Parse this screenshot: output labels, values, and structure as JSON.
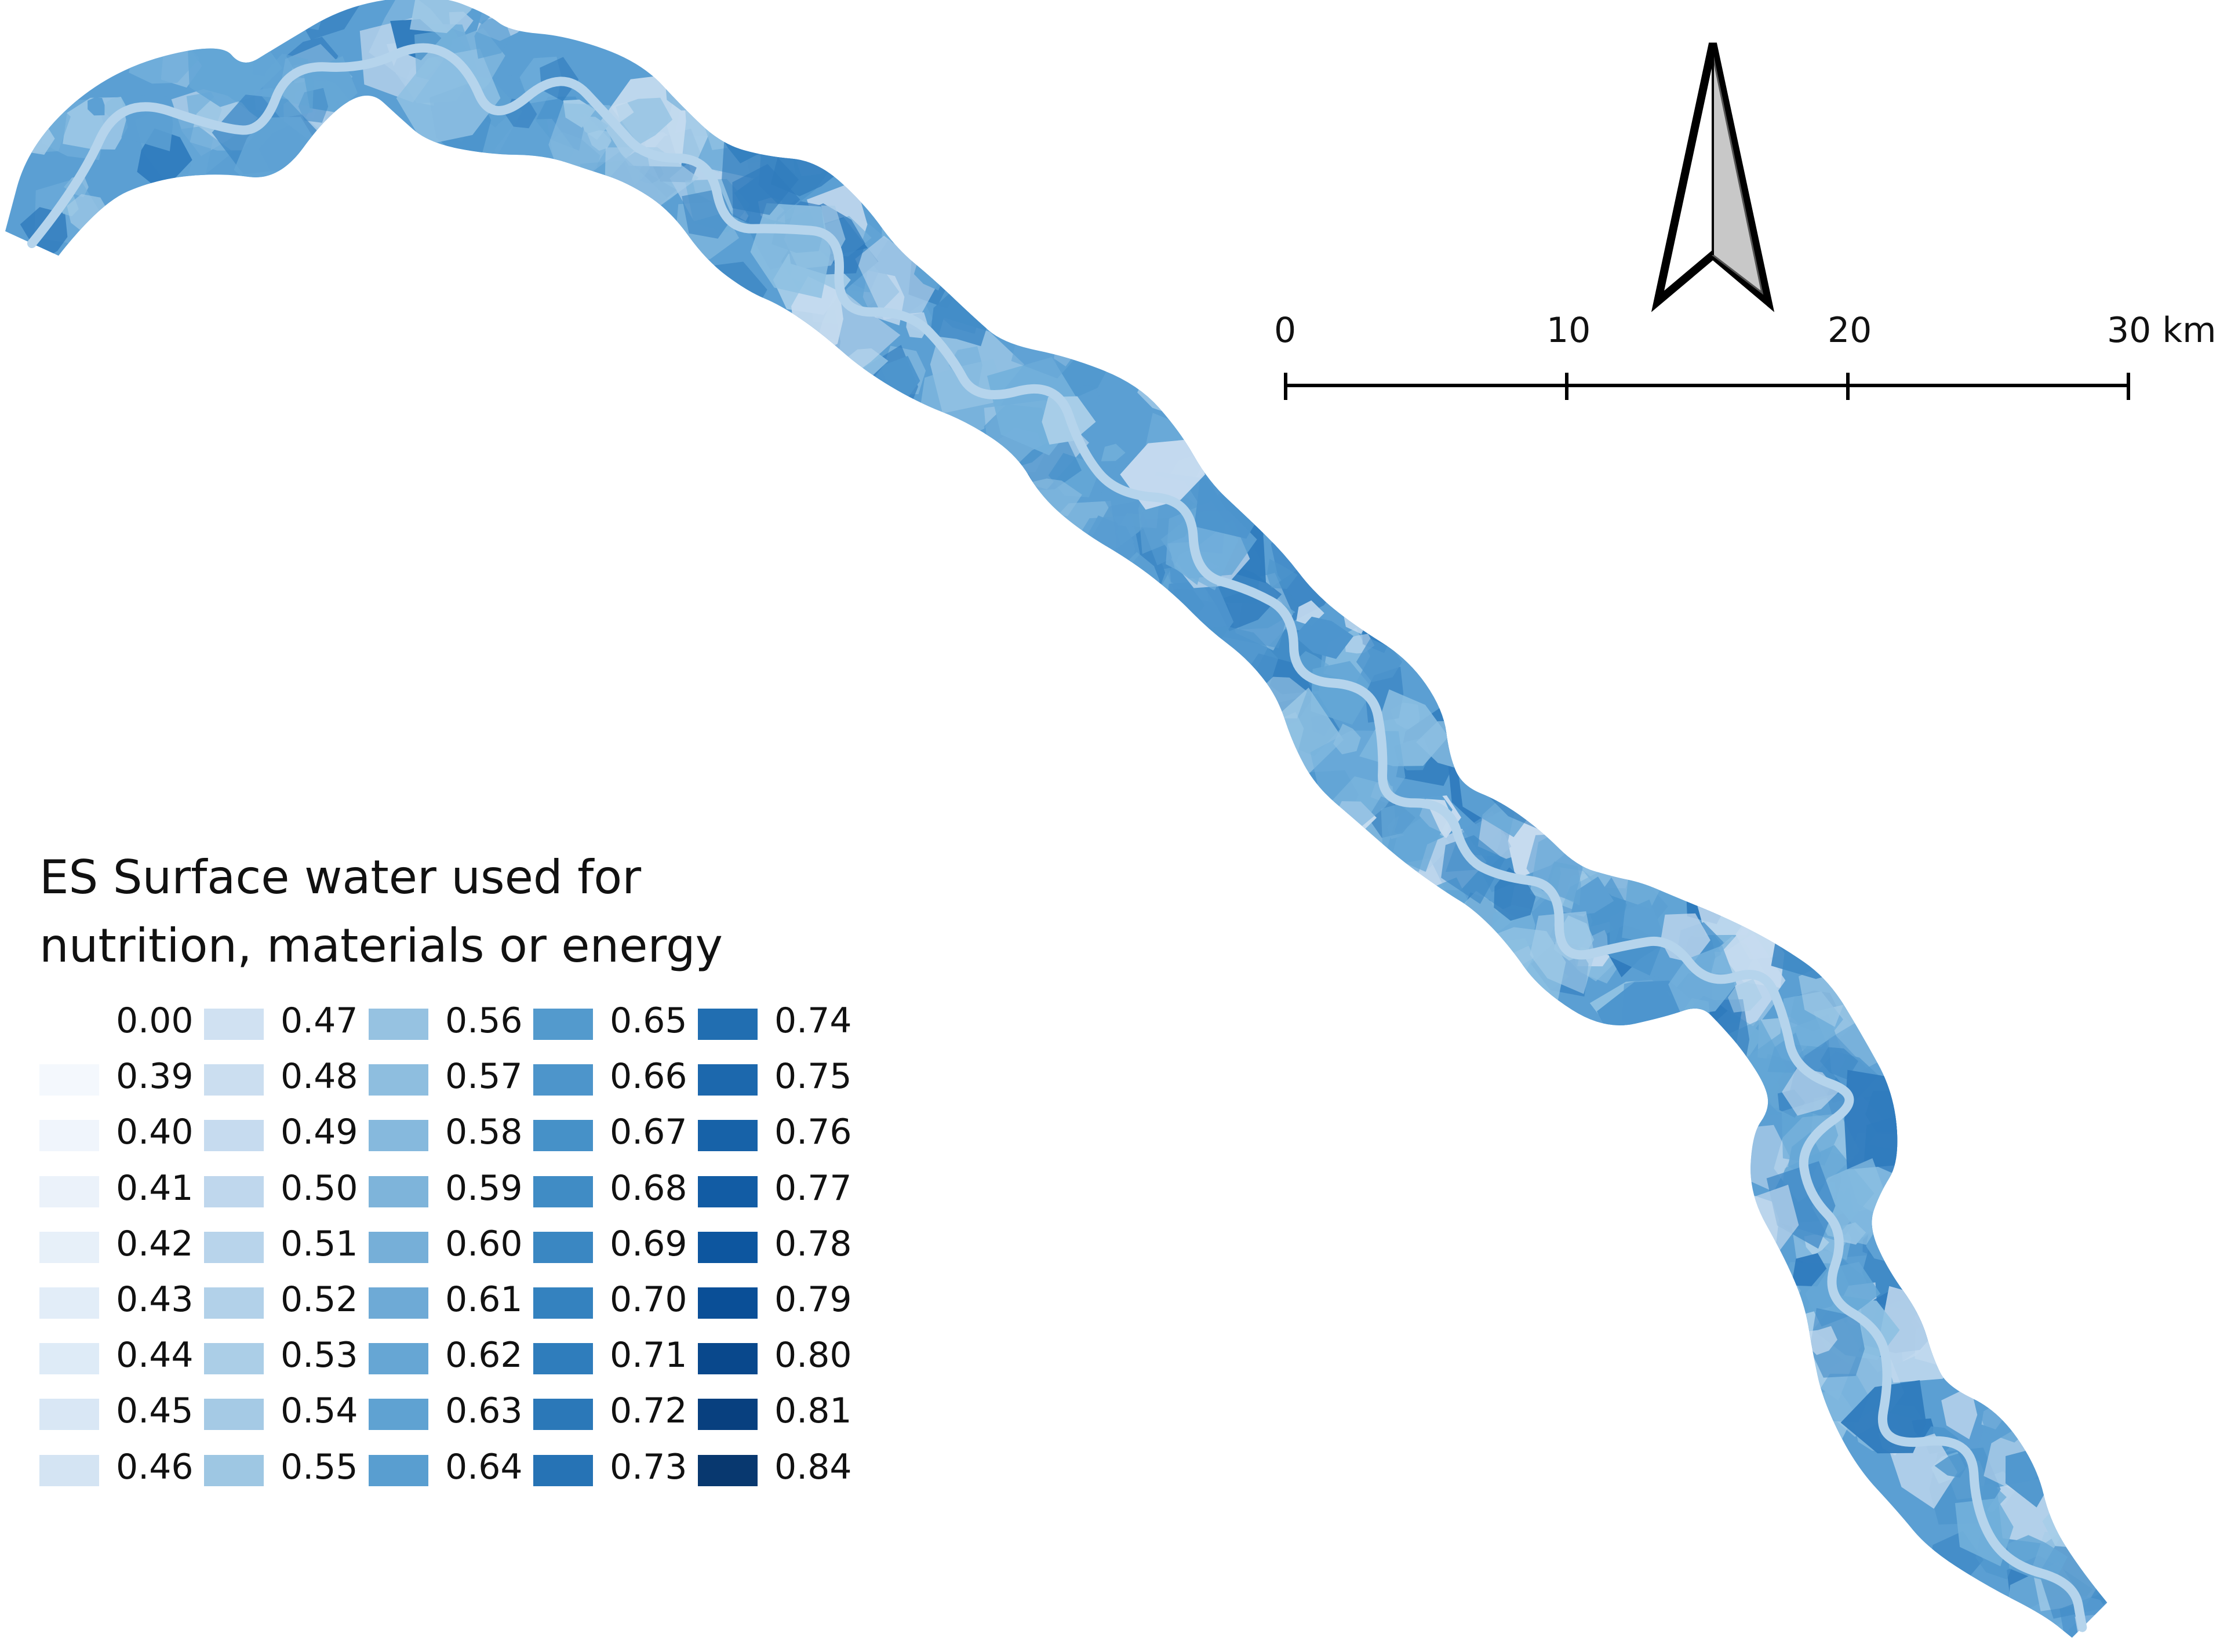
{
  "map": {
    "region_colors": [
      "#5b9fd3",
      "#64a6d6",
      "#73b0db",
      "#4d95cd",
      "#3f89c6",
      "#8ec0e2",
      "#a7cde8",
      "#c6dbef",
      "#2f7bbd"
    ],
    "river_color": "#b5d4ec"
  },
  "north_arrow": {
    "icon": "north-arrow-icon"
  },
  "scale_bar": {
    "ticks": [
      {
        "label": "0"
      },
      {
        "label": "10"
      },
      {
        "label": "20"
      },
      {
        "label": "30 km"
      }
    ]
  },
  "legend": {
    "title_lines": [
      "ES Surface water used for",
      "nutrition, materials or energy"
    ],
    "entries": [
      {
        "label": "0.00",
        "color": "#ffffff"
      },
      {
        "label": "0.39",
        "color": "#f4f8fd"
      },
      {
        "label": "0.40",
        "color": "#f0f5fc"
      },
      {
        "label": "0.41",
        "color": "#ebf2fa"
      },
      {
        "label": "0.42",
        "color": "#e7f0f9"
      },
      {
        "label": "0.43",
        "color": "#e2edf8"
      },
      {
        "label": "0.44",
        "color": "#deebf7"
      },
      {
        "label": "0.45",
        "color": "#d9e7f5"
      },
      {
        "label": "0.46",
        "color": "#d4e4f3"
      },
      {
        "label": "0.47",
        "color": "#d0e1f2"
      },
      {
        "label": "0.48",
        "color": "#cbdef0"
      },
      {
        "label": "0.49",
        "color": "#c6dbef"
      },
      {
        "label": "0.50",
        "color": "#bfd7ed"
      },
      {
        "label": "0.51",
        "color": "#b8d4eb"
      },
      {
        "label": "0.52",
        "color": "#b2d1e9"
      },
      {
        "label": "0.53",
        "color": "#abcee7"
      },
      {
        "label": "0.54",
        "color": "#a5cae5"
      },
      {
        "label": "0.55",
        "color": "#9ec7e3"
      },
      {
        "label": "0.56",
        "color": "#96c2e1"
      },
      {
        "label": "0.57",
        "color": "#8ebedf"
      },
      {
        "label": "0.58",
        "color": "#86b9dd"
      },
      {
        "label": "0.59",
        "color": "#7eb4da"
      },
      {
        "label": "0.60",
        "color": "#76afd8"
      },
      {
        "label": "0.61",
        "color": "#6eaad6"
      },
      {
        "label": "0.62",
        "color": "#66a6d4"
      },
      {
        "label": "0.63",
        "color": "#5fa2d2"
      },
      {
        "label": "0.64",
        "color": "#599ed0"
      },
      {
        "label": "0.65",
        "color": "#539acd"
      },
      {
        "label": "0.66",
        "color": "#4d95cb"
      },
      {
        "label": "0.67",
        "color": "#4691c8"
      },
      {
        "label": "0.68",
        "color": "#408cc5"
      },
      {
        "label": "0.69",
        "color": "#3a87c2"
      },
      {
        "label": "0.70",
        "color": "#3482bf"
      },
      {
        "label": "0.71",
        "color": "#2f7dbc"
      },
      {
        "label": "0.72",
        "color": "#2b78b8"
      },
      {
        "label": "0.73",
        "color": "#2673b5"
      },
      {
        "label": "0.74",
        "color": "#216eb1"
      },
      {
        "label": "0.75",
        "color": "#1c68ad"
      },
      {
        "label": "0.76",
        "color": "#1762a8"
      },
      {
        "label": "0.77",
        "color": "#125ca4"
      },
      {
        "label": "0.78",
        "color": "#0d569f"
      },
      {
        "label": "0.79",
        "color": "#0a4f97"
      },
      {
        "label": "0.80",
        "color": "#09488c"
      },
      {
        "label": "0.81",
        "color": "#08407f"
      },
      {
        "label": "0.84",
        "color": "#08386f"
      }
    ]
  }
}
